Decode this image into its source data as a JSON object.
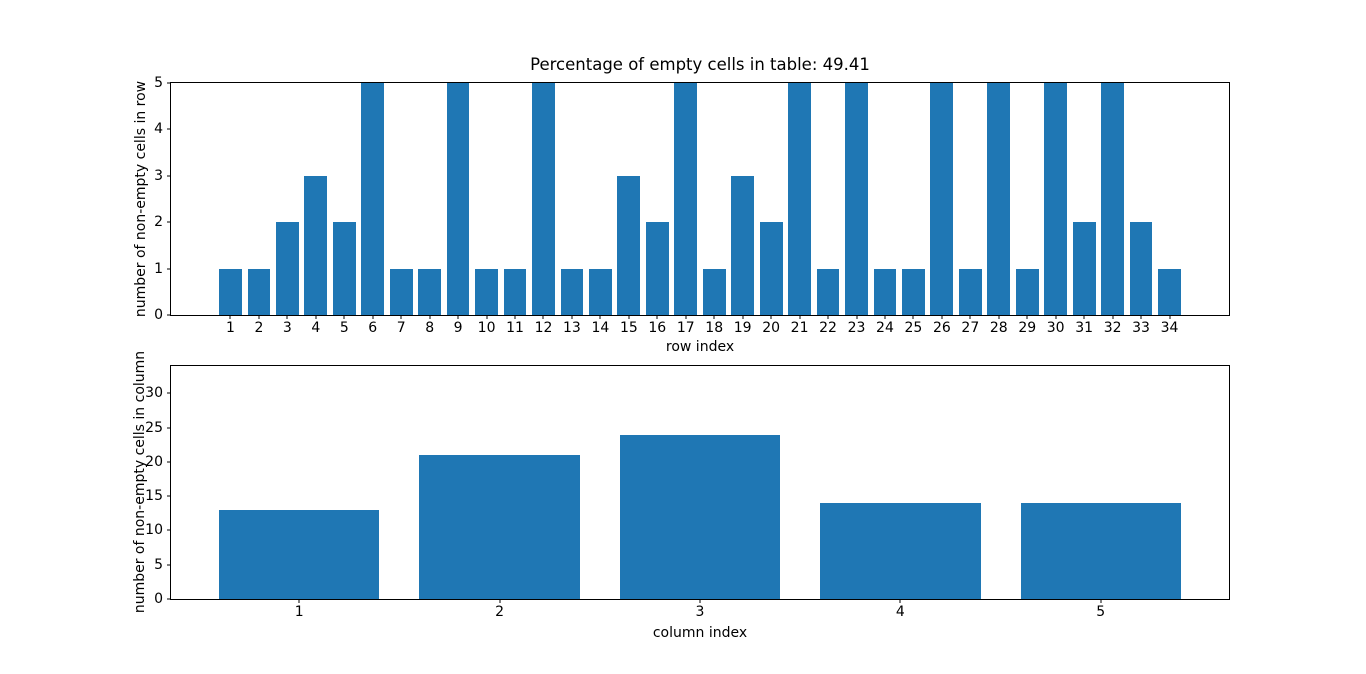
{
  "figure": {
    "background_color": "#ffffff",
    "bar_color": "#1f77b4",
    "spine_color": "#000000",
    "text_color": "#000000"
  },
  "chart_data": [
    {
      "type": "bar",
      "title": "Percentage of empty cells in table: 49.41",
      "xlabel": "row index",
      "ylabel": "number of non-empty cells in row",
      "categories": [
        1,
        2,
        3,
        4,
        5,
        6,
        7,
        8,
        9,
        10,
        11,
        12,
        13,
        14,
        15,
        16,
        17,
        18,
        19,
        20,
        21,
        22,
        23,
        24,
        25,
        26,
        27,
        28,
        29,
        30,
        31,
        32,
        33,
        34
      ],
      "values": [
        1,
        1,
        2,
        3,
        2,
        5,
        1,
        1,
        5,
        1,
        1,
        5,
        1,
        1,
        3,
        2,
        5,
        1,
        3,
        2,
        5,
        1,
        5,
        1,
        1,
        5,
        1,
        5,
        1,
        5,
        2,
        5,
        2,
        1
      ],
      "yticks": [
        0,
        1,
        2,
        3,
        4,
        5
      ],
      "ylim": [
        0,
        5
      ],
      "xlim": [
        -1.09,
        36.09
      ],
      "bar_width": 0.8,
      "grid": false,
      "legend": null
    },
    {
      "type": "bar",
      "title": "",
      "xlabel": "column index",
      "ylabel": "number of non-empty cells in column",
      "categories": [
        1,
        2,
        3,
        4,
        5
      ],
      "values": [
        13,
        21,
        24,
        14,
        14
      ],
      "yticks": [
        0,
        5,
        10,
        15,
        20,
        25,
        30
      ],
      "ylim": [
        0,
        34
      ],
      "xlim": [
        0.36,
        5.64
      ],
      "bar_width": 0.8,
      "grid": false,
      "legend": null
    }
  ]
}
